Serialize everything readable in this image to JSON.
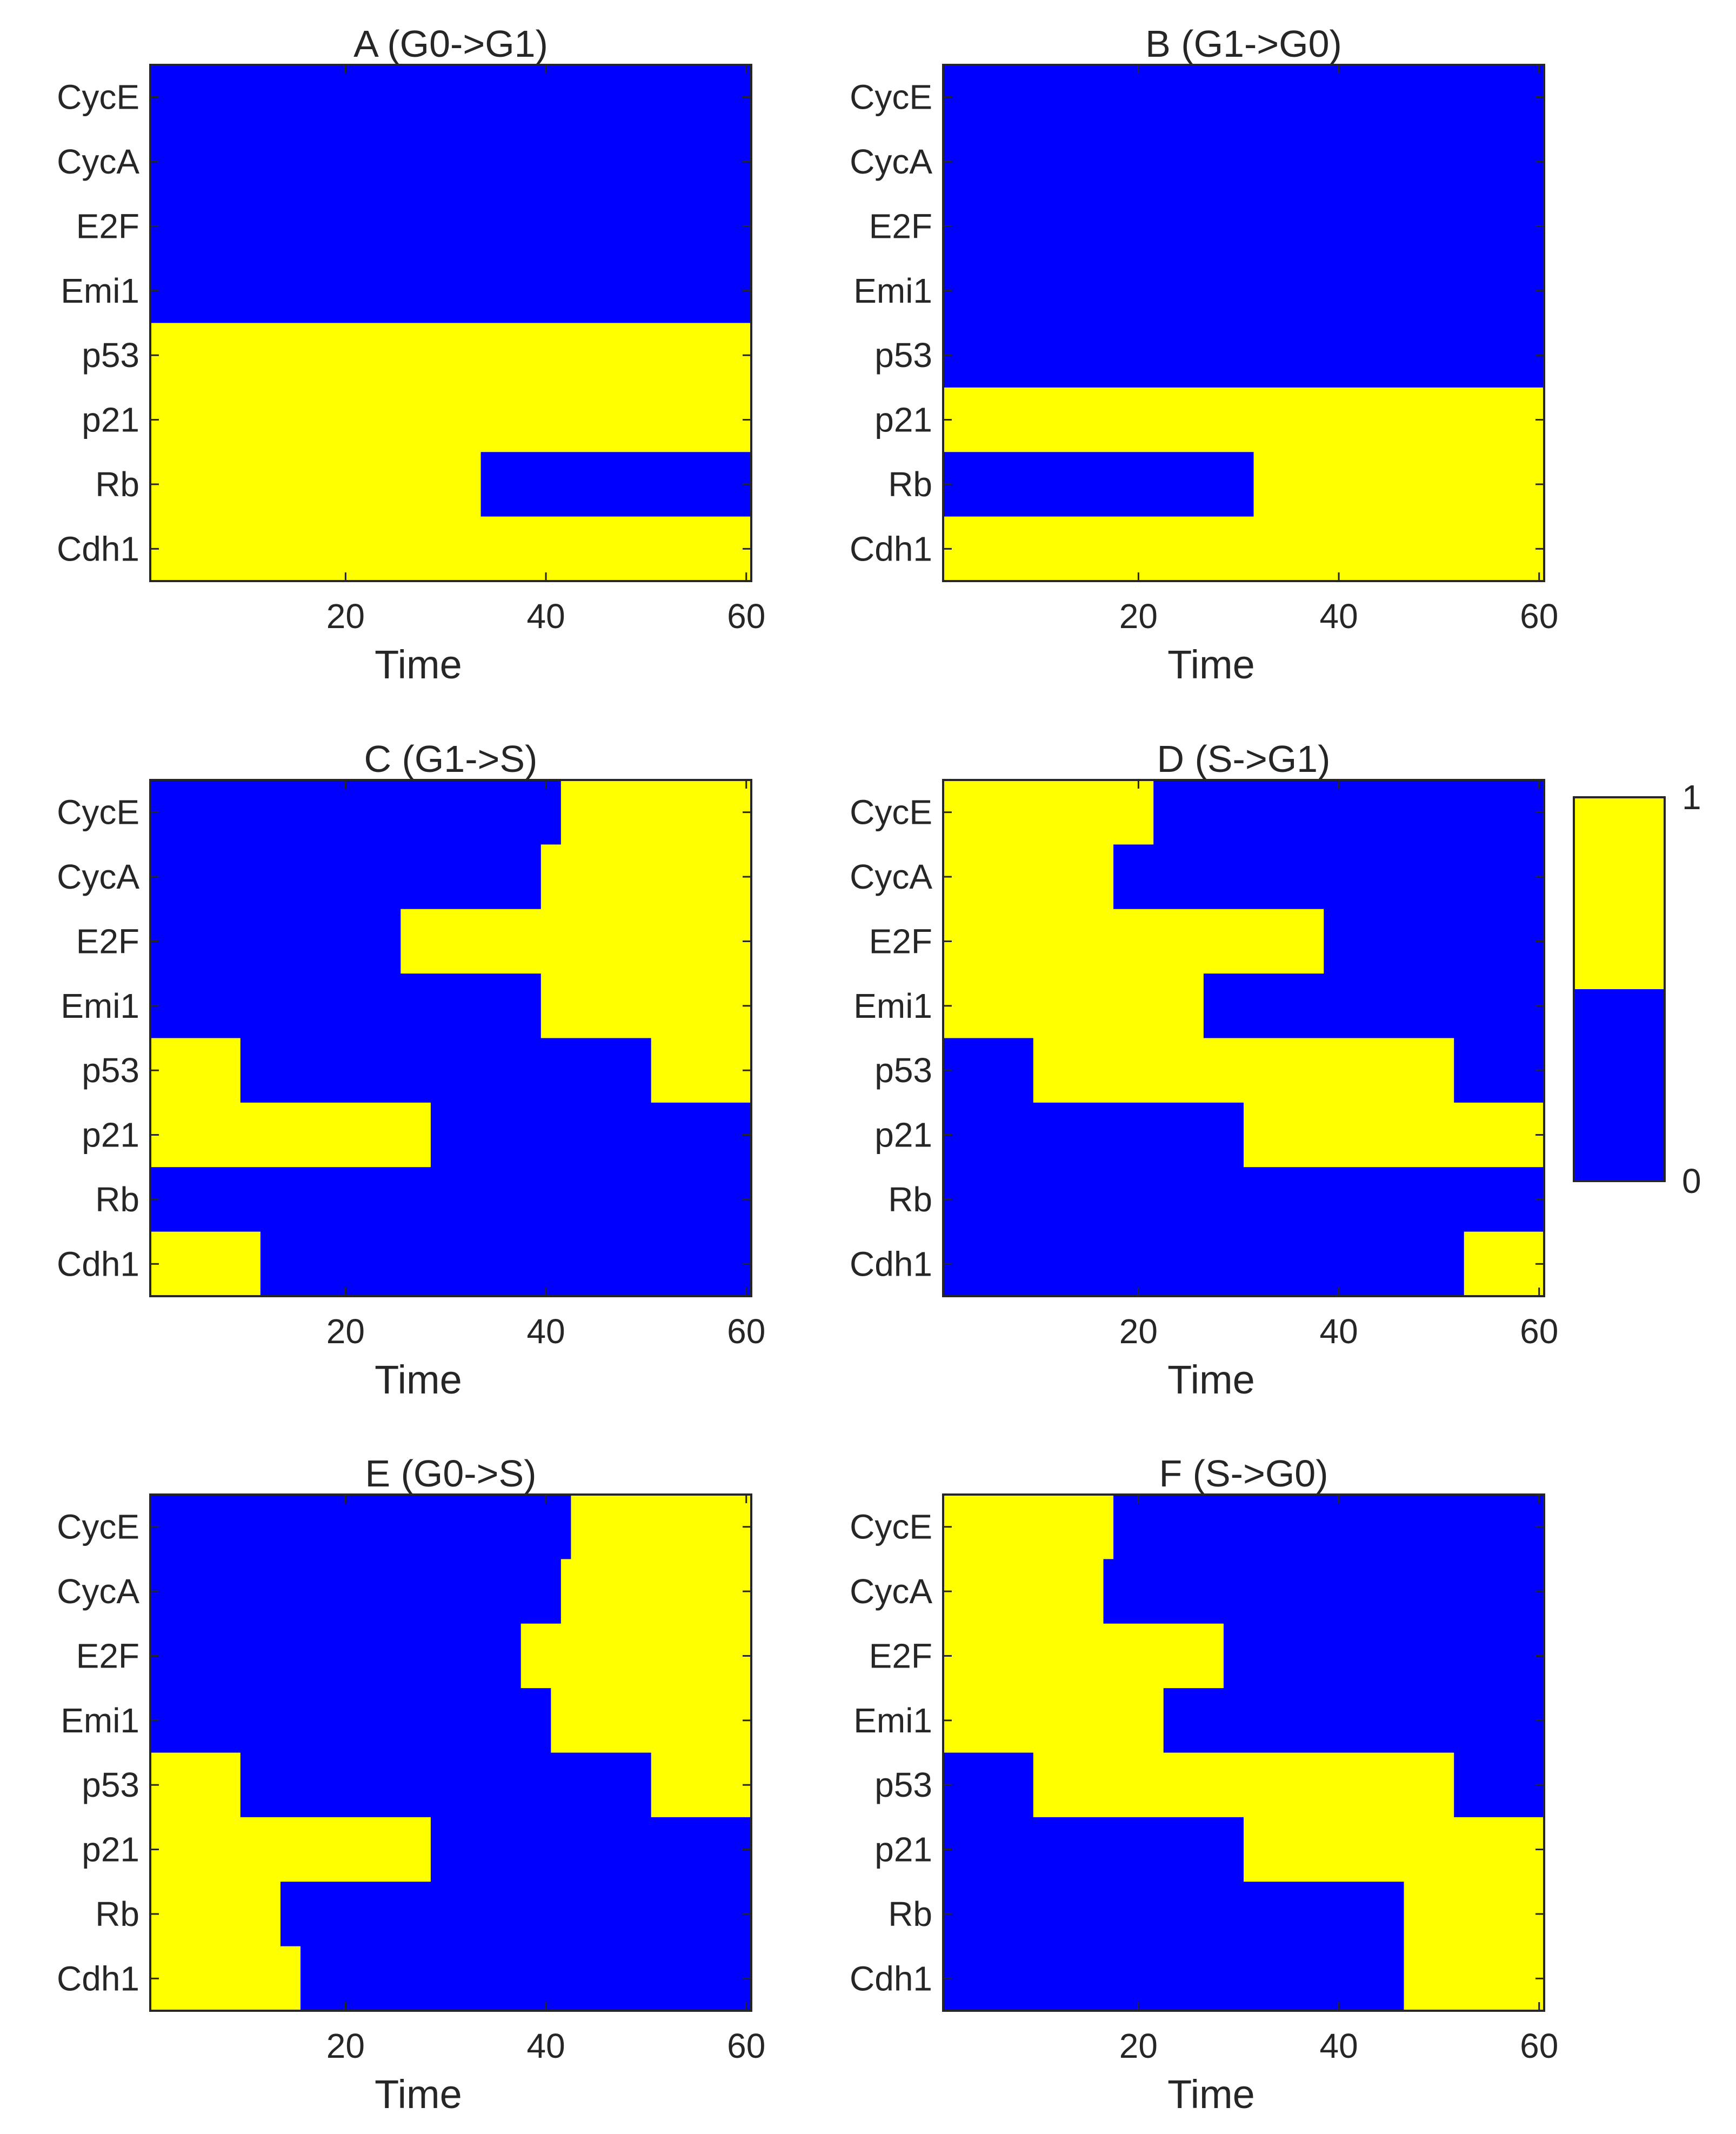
{
  "chart_data": {
    "type": "heatmap",
    "rows": [
      "CycE",
      "CycA",
      "E2F",
      "Emi1",
      "p53",
      "p21",
      "Rb",
      "Cdh1"
    ],
    "xlabel": "Time",
    "xticks": [
      20,
      40,
      60
    ],
    "xlim": [
      0.5,
      60.5
    ],
    "colors": {
      "0": "#0000ff",
      "1": "#ffff00"
    },
    "colorbar": {
      "ticks": [
        "1",
        "0"
      ]
    },
    "panels": [
      {
        "title": "A (G0->G1)",
        "rows": [
          {
            "name": "CycE",
            "segments": [
              {
                "start": 0.5,
                "end": 60.5,
                "value": 0
              }
            ]
          },
          {
            "name": "CycA",
            "segments": [
              {
                "start": 0.5,
                "end": 60.5,
                "value": 0
              }
            ]
          },
          {
            "name": "E2F",
            "segments": [
              {
                "start": 0.5,
                "end": 60.5,
                "value": 0
              }
            ]
          },
          {
            "name": "Emi1",
            "segments": [
              {
                "start": 0.5,
                "end": 60.5,
                "value": 0
              }
            ]
          },
          {
            "name": "p53",
            "segments": [
              {
                "start": 0.5,
                "end": 60.5,
                "value": 1
              }
            ]
          },
          {
            "name": "p21",
            "segments": [
              {
                "start": 0.5,
                "end": 60.5,
                "value": 1
              }
            ]
          },
          {
            "name": "Rb",
            "segments": [
              {
                "start": 0.5,
                "end": 33.5,
                "value": 1
              },
              {
                "start": 33.5,
                "end": 60.5,
                "value": 0
              }
            ]
          },
          {
            "name": "Cdh1",
            "segments": [
              {
                "start": 0.5,
                "end": 60.5,
                "value": 1
              }
            ]
          }
        ]
      },
      {
        "title": "B (G1->G0)",
        "rows": [
          {
            "name": "CycE",
            "segments": [
              {
                "start": 0.5,
                "end": 60.5,
                "value": 0
              }
            ]
          },
          {
            "name": "CycA",
            "segments": [
              {
                "start": 0.5,
                "end": 60.5,
                "value": 0
              }
            ]
          },
          {
            "name": "E2F",
            "segments": [
              {
                "start": 0.5,
                "end": 60.5,
                "value": 0
              }
            ]
          },
          {
            "name": "Emi1",
            "segments": [
              {
                "start": 0.5,
                "end": 60.5,
                "value": 0
              }
            ]
          },
          {
            "name": "p53",
            "segments": [
              {
                "start": 0.5,
                "end": 60.5,
                "value": 0
              }
            ]
          },
          {
            "name": "p21",
            "segments": [
              {
                "start": 0.5,
                "end": 60.5,
                "value": 1
              }
            ]
          },
          {
            "name": "Rb",
            "segments": [
              {
                "start": 0.5,
                "end": 31.5,
                "value": 0
              },
              {
                "start": 31.5,
                "end": 60.5,
                "value": 1
              }
            ]
          },
          {
            "name": "Cdh1",
            "segments": [
              {
                "start": 0.5,
                "end": 60.5,
                "value": 1
              }
            ]
          }
        ]
      },
      {
        "title": "C (G1->S)",
        "rows": [
          {
            "name": "CycE",
            "segments": [
              {
                "start": 0.5,
                "end": 41.5,
                "value": 0
              },
              {
                "start": 41.5,
                "end": 60.5,
                "value": 1
              }
            ]
          },
          {
            "name": "CycA",
            "segments": [
              {
                "start": 0.5,
                "end": 39.5,
                "value": 0
              },
              {
                "start": 39.5,
                "end": 60.5,
                "value": 1
              }
            ]
          },
          {
            "name": "E2F",
            "segments": [
              {
                "start": 0.5,
                "end": 25.5,
                "value": 0
              },
              {
                "start": 25.5,
                "end": 60.5,
                "value": 1
              }
            ]
          },
          {
            "name": "Emi1",
            "segments": [
              {
                "start": 0.5,
                "end": 39.5,
                "value": 0
              },
              {
                "start": 39.5,
                "end": 60.5,
                "value": 1
              }
            ]
          },
          {
            "name": "p53",
            "segments": [
              {
                "start": 0.5,
                "end": 9.5,
                "value": 1
              },
              {
                "start": 9.5,
                "end": 50.5,
                "value": 0
              },
              {
                "start": 50.5,
                "end": 60.5,
                "value": 1
              }
            ]
          },
          {
            "name": "p21",
            "segments": [
              {
                "start": 0.5,
                "end": 28.5,
                "value": 1
              },
              {
                "start": 28.5,
                "end": 60.5,
                "value": 0
              }
            ]
          },
          {
            "name": "Rb",
            "segments": [
              {
                "start": 0.5,
                "end": 60.5,
                "value": 0
              }
            ]
          },
          {
            "name": "Cdh1",
            "segments": [
              {
                "start": 0.5,
                "end": 11.5,
                "value": 1
              },
              {
                "start": 11.5,
                "end": 60.5,
                "value": 0
              }
            ]
          }
        ]
      },
      {
        "title": "D (S->G1)",
        "rows": [
          {
            "name": "CycE",
            "segments": [
              {
                "start": 0.5,
                "end": 21.5,
                "value": 1
              },
              {
                "start": 21.5,
                "end": 60.5,
                "value": 0
              }
            ]
          },
          {
            "name": "CycA",
            "segments": [
              {
                "start": 0.5,
                "end": 17.5,
                "value": 1
              },
              {
                "start": 17.5,
                "end": 60.5,
                "value": 0
              }
            ]
          },
          {
            "name": "E2F",
            "segments": [
              {
                "start": 0.5,
                "end": 38.5,
                "value": 1
              },
              {
                "start": 38.5,
                "end": 60.5,
                "value": 0
              }
            ]
          },
          {
            "name": "Emi1",
            "segments": [
              {
                "start": 0.5,
                "end": 26.5,
                "value": 1
              },
              {
                "start": 26.5,
                "end": 60.5,
                "value": 0
              }
            ]
          },
          {
            "name": "p53",
            "segments": [
              {
                "start": 0.5,
                "end": 9.5,
                "value": 0
              },
              {
                "start": 9.5,
                "end": 51.5,
                "value": 1
              },
              {
                "start": 51.5,
                "end": 60.5,
                "value": 0
              }
            ]
          },
          {
            "name": "p21",
            "segments": [
              {
                "start": 0.5,
                "end": 30.5,
                "value": 0
              },
              {
                "start": 30.5,
                "end": 60.5,
                "value": 1
              }
            ]
          },
          {
            "name": "Rb",
            "segments": [
              {
                "start": 0.5,
                "end": 60.5,
                "value": 0
              }
            ]
          },
          {
            "name": "Cdh1",
            "segments": [
              {
                "start": 0.5,
                "end": 52.5,
                "value": 0
              },
              {
                "start": 52.5,
                "end": 60.5,
                "value": 1
              }
            ]
          }
        ]
      },
      {
        "title": "E (G0->S)",
        "rows": [
          {
            "name": "CycE",
            "segments": [
              {
                "start": 0.5,
                "end": 42.5,
                "value": 0
              },
              {
                "start": 42.5,
                "end": 60.5,
                "value": 1
              }
            ]
          },
          {
            "name": "CycA",
            "segments": [
              {
                "start": 0.5,
                "end": 41.5,
                "value": 0
              },
              {
                "start": 41.5,
                "end": 60.5,
                "value": 1
              }
            ]
          },
          {
            "name": "E2F",
            "segments": [
              {
                "start": 0.5,
                "end": 37.5,
                "value": 0
              },
              {
                "start": 37.5,
                "end": 60.5,
                "value": 1
              }
            ]
          },
          {
            "name": "Emi1",
            "segments": [
              {
                "start": 0.5,
                "end": 40.5,
                "value": 0
              },
              {
                "start": 40.5,
                "end": 60.5,
                "value": 1
              }
            ]
          },
          {
            "name": "p53",
            "segments": [
              {
                "start": 0.5,
                "end": 9.5,
                "value": 1
              },
              {
                "start": 9.5,
                "end": 50.5,
                "value": 0
              },
              {
                "start": 50.5,
                "end": 60.5,
                "value": 1
              }
            ]
          },
          {
            "name": "p21",
            "segments": [
              {
                "start": 0.5,
                "end": 28.5,
                "value": 1
              },
              {
                "start": 28.5,
                "end": 60.5,
                "value": 0
              }
            ]
          },
          {
            "name": "Rb",
            "segments": [
              {
                "start": 0.5,
                "end": 13.5,
                "value": 1
              },
              {
                "start": 13.5,
                "end": 60.5,
                "value": 0
              }
            ]
          },
          {
            "name": "Cdh1",
            "segments": [
              {
                "start": 0.5,
                "end": 15.5,
                "value": 1
              },
              {
                "start": 15.5,
                "end": 60.5,
                "value": 0
              }
            ]
          }
        ]
      },
      {
        "title": "F (S->G0)",
        "rows": [
          {
            "name": "CycE",
            "segments": [
              {
                "start": 0.5,
                "end": 17.5,
                "value": 1
              },
              {
                "start": 17.5,
                "end": 60.5,
                "value": 0
              }
            ]
          },
          {
            "name": "CycA",
            "segments": [
              {
                "start": 0.5,
                "end": 16.5,
                "value": 1
              },
              {
                "start": 16.5,
                "end": 60.5,
                "value": 0
              }
            ]
          },
          {
            "name": "E2F",
            "segments": [
              {
                "start": 0.5,
                "end": 28.5,
                "value": 1
              },
              {
                "start": 28.5,
                "end": 60.5,
                "value": 0
              }
            ]
          },
          {
            "name": "Emi1",
            "segments": [
              {
                "start": 0.5,
                "end": 22.5,
                "value": 1
              },
              {
                "start": 22.5,
                "end": 60.5,
                "value": 0
              }
            ]
          },
          {
            "name": "p53",
            "segments": [
              {
                "start": 0.5,
                "end": 9.5,
                "value": 0
              },
              {
                "start": 9.5,
                "end": 51.5,
                "value": 1
              },
              {
                "start": 51.5,
                "end": 60.5,
                "value": 0
              }
            ]
          },
          {
            "name": "p21",
            "segments": [
              {
                "start": 0.5,
                "end": 30.5,
                "value": 0
              },
              {
                "start": 30.5,
                "end": 60.5,
                "value": 1
              }
            ]
          },
          {
            "name": "Rb",
            "segments": [
              {
                "start": 0.5,
                "end": 46.5,
                "value": 0
              },
              {
                "start": 46.5,
                "end": 60.5,
                "value": 1
              }
            ]
          },
          {
            "name": "Cdh1",
            "segments": [
              {
                "start": 0.5,
                "end": 46.5,
                "value": 0
              },
              {
                "start": 46.5,
                "end": 60.5,
                "value": 1
              }
            ]
          }
        ]
      }
    ]
  }
}
